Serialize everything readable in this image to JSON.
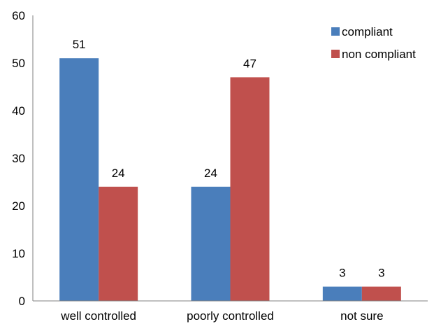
{
  "chart_data": {
    "type": "bar",
    "categories": [
      "well controlled",
      "poorly controlled",
      "not sure"
    ],
    "series": [
      {
        "name": "compliant",
        "values": [
          51,
          24,
          3
        ],
        "color": "#4a7ebb"
      },
      {
        "name": "non compliant",
        "values": [
          24,
          47,
          3
        ],
        "color": "#c0504d"
      }
    ],
    "ylim": [
      0,
      60
    ],
    "yticks": [
      0,
      10,
      20,
      30,
      40,
      50,
      60
    ],
    "grid": false,
    "legend": "top-right",
    "data_labels": true
  }
}
